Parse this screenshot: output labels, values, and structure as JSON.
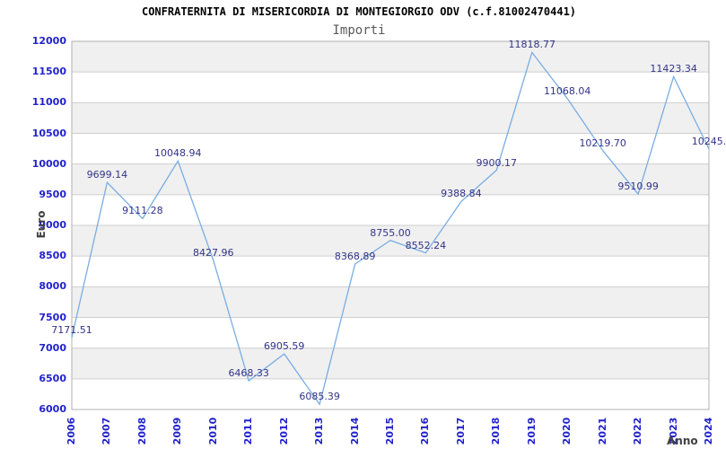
{
  "chart_data": {
    "type": "line",
    "title": "CONFRATERNITA DI MISERICORDIA DI MONTEGIORGIO ODV (c.f.81002470441)",
    "subtitle": "Importi",
    "xlabel": "Anno",
    "ylabel": "Euro",
    "categories": [
      "2006",
      "2007",
      "2008",
      "2009",
      "2010",
      "2011",
      "2012",
      "2013",
      "2014",
      "2015",
      "2016",
      "2017",
      "2018",
      "2019",
      "2020",
      "2021",
      "2022",
      "2023",
      "2024"
    ],
    "values": [
      7171.51,
      9699.14,
      9111.28,
      10048.94,
      8427.96,
      6468.33,
      6905.59,
      6085.39,
      8368.89,
      8755.0,
      8552.24,
      9388.84,
      9900.17,
      11818.77,
      11068.04,
      10219.7,
      9510.99,
      11423.34,
      10245
    ],
    "point_labels": [
      "7171.51",
      "9699.14",
      "9111.28",
      "10048.94",
      "8427.96",
      "6468.33",
      "6905.59",
      "6085.39",
      "8368.89",
      "8755.00",
      "8552.24",
      "9388.84",
      "9900.17",
      "11818.77",
      "11068.04",
      "10219.70",
      "9510.99",
      "11423.34",
      "10245."
    ],
    "ylim": [
      6000,
      12000
    ],
    "ytick_step": 500,
    "ytick_labels": [
      "12000",
      "11500",
      "11000",
      "10500",
      "10000",
      "9500",
      "9000",
      "8500",
      "8000",
      "7500",
      "7000",
      "6500",
      "6000"
    ],
    "grid": "horizontal-bands-alternating",
    "legend": "none"
  },
  "colors": {
    "line": "#79ade2",
    "band_gray": "#f0f0f0",
    "band_white": "#ffffff",
    "gridline": "#cfcfcf",
    "plot_border": "#b0b0b0",
    "axis_tick_label": "#2222cc",
    "data_label": "#333388",
    "axis_title": "#404040",
    "title": "#000000",
    "subtitle": "#5a5a5a",
    "background": "#ffffff"
  }
}
